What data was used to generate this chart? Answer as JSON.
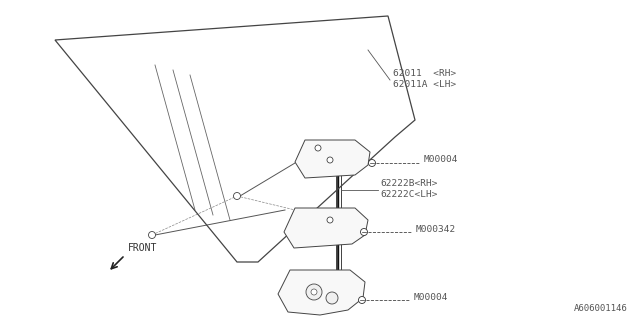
{
  "bg_color": "#ffffff",
  "line_color": "#000000",
  "text_color": "#555555",
  "diagram_id": "A606001146",
  "labels": {
    "part1_rh": "62011  <RH>",
    "part1_lh": "62011A <LH>",
    "part2_rh": "62222B<RH>",
    "part2_lh": "62222C<LH>",
    "bolt1": "M00004",
    "bolt2": "M000342",
    "bolt3": "M00004",
    "front_label": "FRONT"
  },
  "figsize": [
    6.4,
    3.2
  ],
  "dpi": 100
}
